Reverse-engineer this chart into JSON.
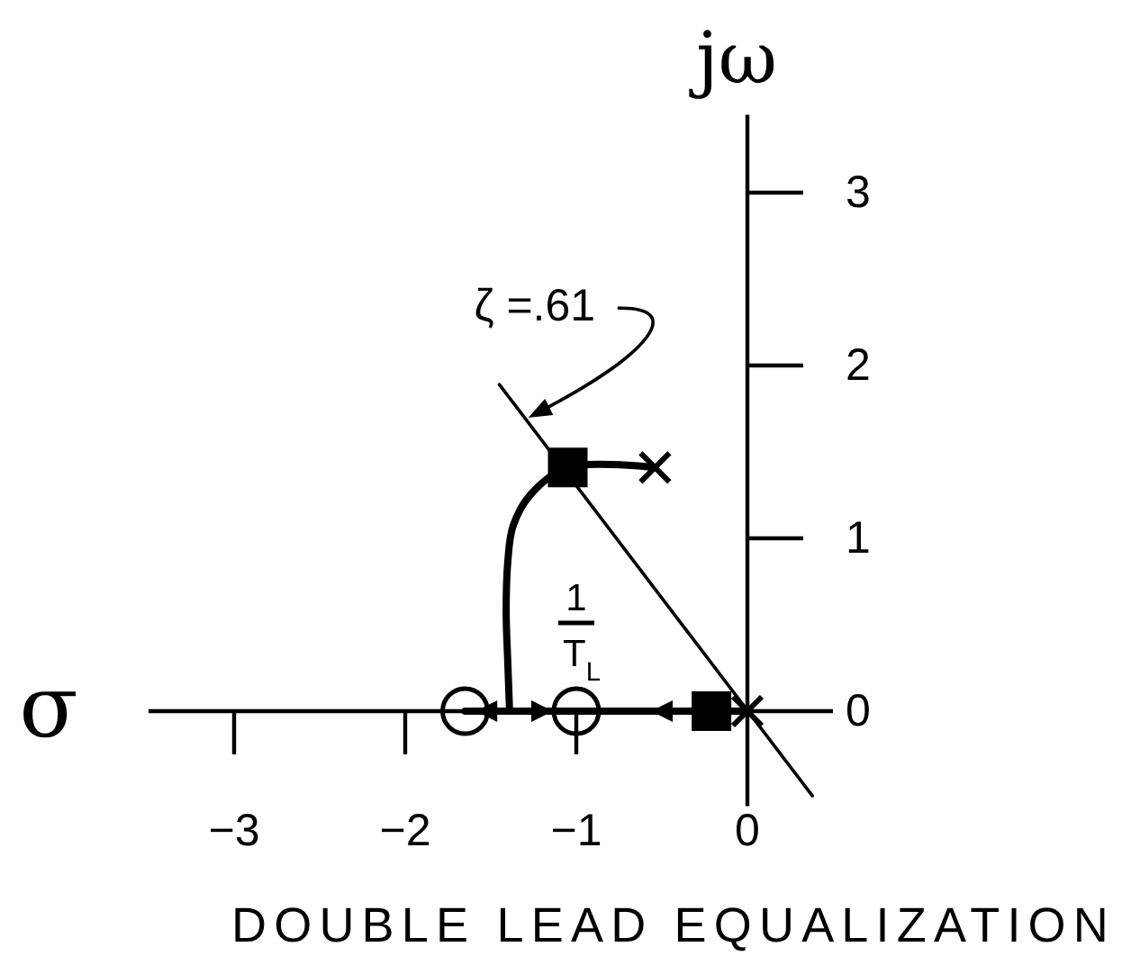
{
  "chart_data": {
    "type": "line",
    "title": "DOUBLE LEAD EQUALIZATION",
    "xlabel": "σ",
    "ylabel": "jω",
    "xlim": [
      -3.5,
      0.5
    ],
    "ylim": [
      -0.55,
      3.45
    ],
    "xticks": [
      -3,
      -2,
      -1,
      0
    ],
    "yticks": [
      0,
      1,
      2,
      3
    ],
    "series": [
      {
        "type": "line",
        "name": "ζ =.61",
        "color": "#000000",
        "x": [
          -1.45,
          0.38
        ],
        "values": [
          1.89,
          -0.49
        ]
      },
      {
        "type": "line",
        "color": "#000000",
        "x": [
          -0.54,
          -1.05,
          -1.27,
          -1.37,
          -1.4,
          -1.41,
          -1.4,
          -1.39
        ],
        "values": [
          1.41,
          1.41,
          1.25,
          1.07,
          0.87,
          0.58,
          0.27,
          0
        ]
      },
      {
        "type": "line",
        "color": "#000000",
        "x": [
          -1.65,
          -1.4,
          -1,
          0
        ],
        "values": [
          0,
          0,
          0,
          0
        ]
      },
      {
        "type": "scatter",
        "marker": "circle",
        "color": "#000000",
        "x": [
          -1.65,
          -1
        ],
        "values": [
          0,
          0
        ]
      },
      {
        "type": "scatter",
        "marker": "square",
        "color": "#000000",
        "x": [
          -1.05,
          -0.21
        ],
        "values": [
          1.41,
          0
        ]
      },
      {
        "type": "scatter",
        "marker": "cross",
        "color": "#000000",
        "x": [
          -0.54,
          0
        ],
        "values": [
          1.41,
          0
        ]
      }
    ],
    "annotations": [
      "1",
      "T$_{L}$"
    ]
  }
}
